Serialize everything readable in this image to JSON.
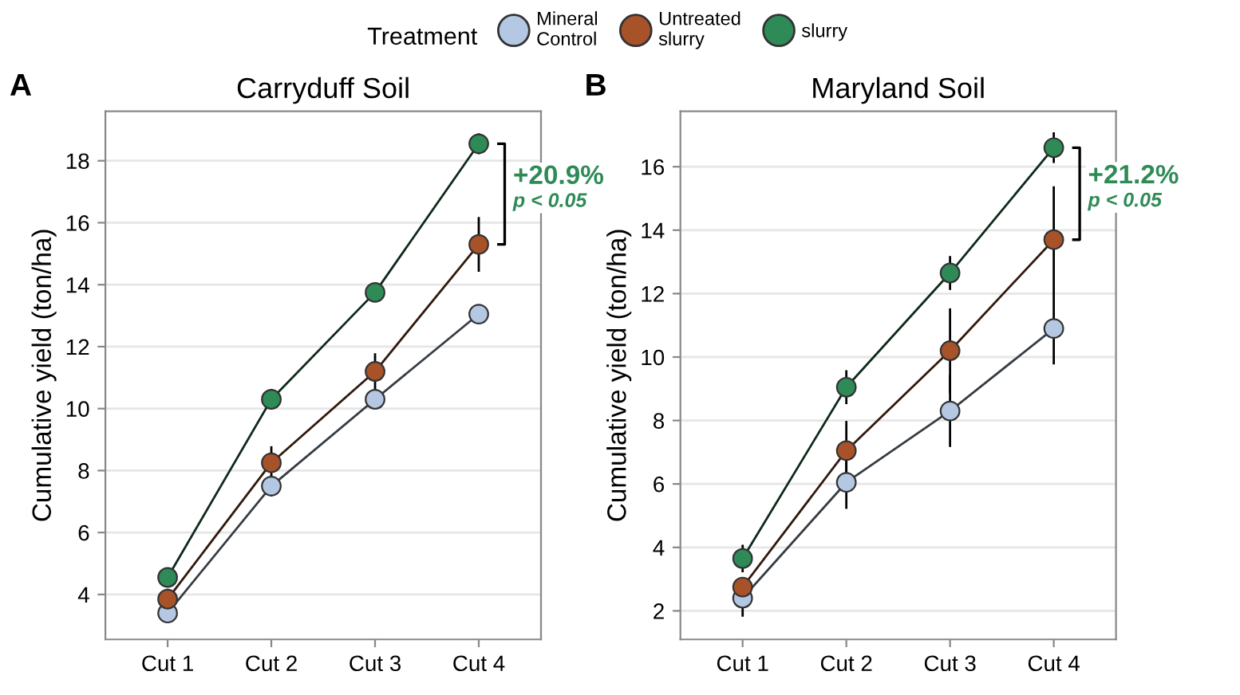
{
  "chart_data": [
    {
      "type": "line",
      "title": "Carryduff Soil",
      "ylabel": "Cumulative yield (ton/ha)",
      "legend_title": "Treatment",
      "legend": "top",
      "grid": "y",
      "marker": "circle",
      "line_style": "solid",
      "categories": [
        "Cut 1",
        "Cut 2",
        "Cut 3",
        "Cut 4"
      ],
      "ylim": [
        2.55,
        19.6
      ],
      "yticks": [
        4,
        6,
        8,
        10,
        12,
        14,
        16,
        18
      ],
      "annotations": [
        "A",
        "+20.9%",
        "p < 0.05"
      ],
      "series": [
        {
          "name": "Mineral Control",
          "color": "#b4c7e3",
          "values": [
            3.4,
            7.5,
            10.3,
            13.05
          ],
          "errors": [
            null,
            0.3,
            null,
            null
          ]
        },
        {
          "name": "Untreated slurry",
          "color": "#a8522a",
          "values": [
            3.85,
            8.25,
            11.2,
            15.3
          ],
          "errors": [
            0.3,
            0.5,
            0.55,
            0.85
          ]
        },
        {
          "name": "slurry",
          "color": "#2e8b57",
          "values": [
            4.55,
            10.3,
            13.75,
            18.55
          ],
          "errors": [
            null,
            0.3,
            0.2,
            0.3
          ]
        }
      ]
    },
    {
      "type": "line",
      "title": "Maryland Soil",
      "ylabel": "Cumulative yield (ton/ha)",
      "grid": "y",
      "marker": "circle",
      "line_style": "solid",
      "categories": [
        "Cut 1",
        "Cut 2",
        "Cut 3",
        "Cut 4"
      ],
      "ylim": [
        1.1,
        17.75
      ],
      "yticks": [
        2,
        4,
        6,
        8,
        10,
        12,
        14,
        16
      ],
      "annotations": [
        "B",
        "+21.2%",
        "p < 0.05"
      ],
      "series": [
        {
          "color": "#b4c7e3",
          "values": [
            2.4,
            6.05,
            8.3,
            10.9
          ],
          "errors": [
            0.55,
            0.8,
            1.1,
            1.1
          ]
        },
        {
          "color": "#a8522a",
          "values": [
            2.75,
            7.05,
            10.2,
            13.7
          ],
          "errors": [
            0.2,
            0.9,
            1.3,
            1.65
          ]
        },
        {
          "color": "#2e8b57",
          "values": [
            3.65,
            9.05,
            12.65,
            16.6
          ],
          "errors": [
            0.4,
            0.5,
            0.5,
            0.45
          ]
        }
      ]
    }
  ]
}
